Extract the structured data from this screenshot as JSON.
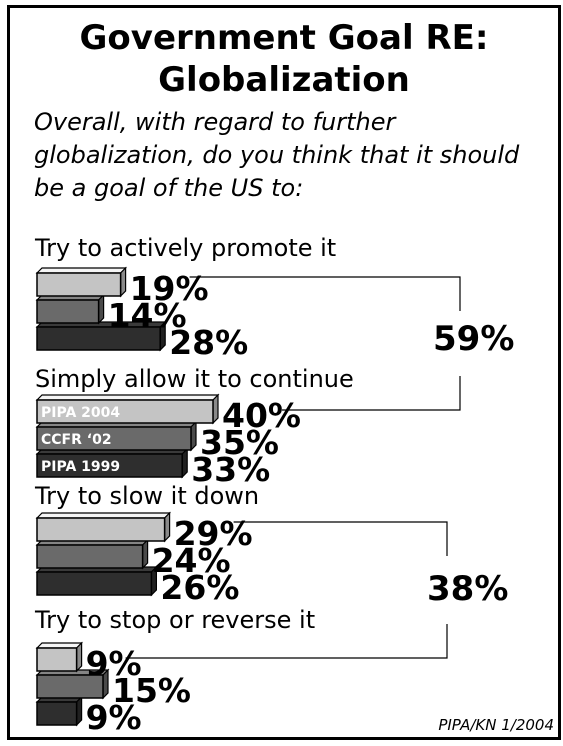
{
  "title_line1": "Government Goal RE:",
  "title_line2": "Globalization",
  "question": "Overall, with regard to further globalization, do you think that it should be a goal of the US to:",
  "source": "PIPA/KN 1/2004",
  "colors": {
    "pipa2004": "#c4c4c4",
    "ccfr02": "#6a6a6a",
    "pipa1999": "#2e2e2e"
  },
  "chart_data": {
    "type": "bar",
    "orientation": "horizontal",
    "categories": [
      "Try to actively promote it",
      "Simply allow it to continue",
      "Try to slow it down",
      "Try to stop or reverse it"
    ],
    "series": [
      {
        "name": "PIPA 2004",
        "values": [
          19,
          40,
          29,
          9
        ]
      },
      {
        "name": "CCFR ‘02",
        "values": [
          14,
          35,
          24,
          15
        ]
      },
      {
        "name": "PIPA 1999",
        "values": [
          28,
          33,
          26,
          9
        ]
      }
    ],
    "unit": "%",
    "value_labels": [
      [
        "19%",
        "14%",
        "28%"
      ],
      [
        "40%",
        "35%",
        "33%"
      ],
      [
        "29%",
        "24%",
        "26%"
      ],
      [
        "9%",
        "15%",
        "9%"
      ]
    ],
    "group_totals": [
      {
        "label": "59%",
        "categories": [
          "Try to actively promote it",
          "Simply allow it to continue"
        ]
      },
      {
        "label": "38%",
        "categories": [
          "Try to slow it down",
          "Try to stop or reverse it"
        ]
      }
    ]
  }
}
